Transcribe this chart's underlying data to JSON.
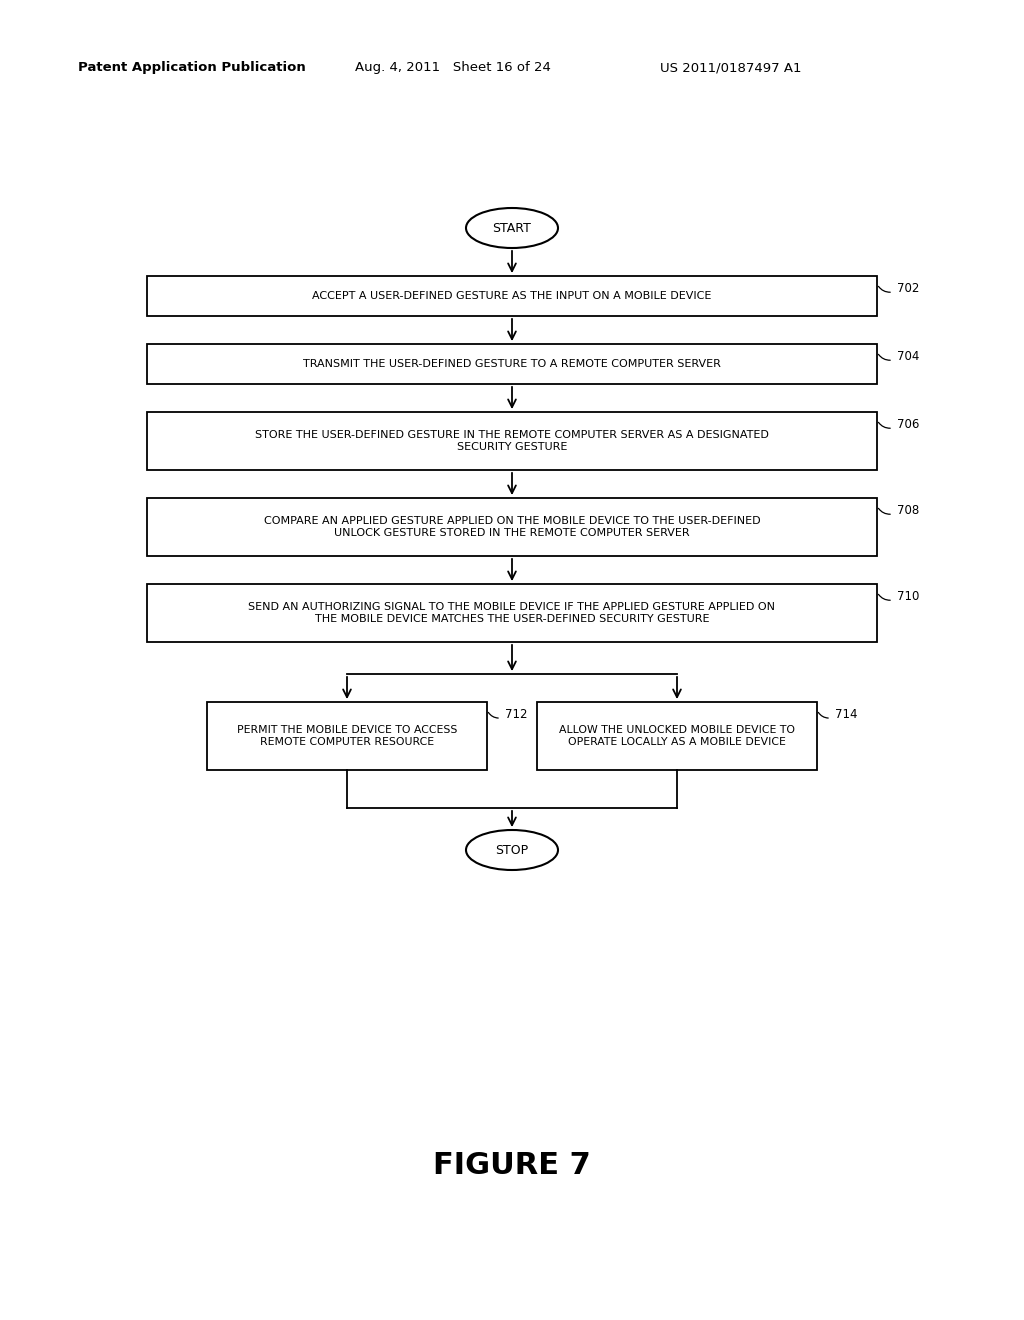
{
  "background_color": "#ffffff",
  "header_left": "Patent Application Publication",
  "header_mid": "Aug. 4, 2011   Sheet 16 of 24",
  "header_right": "US 2011/0187497 A1",
  "figure_label": "FIGURE 7",
  "start_label": "START",
  "stop_label": "STOP",
  "boxes": [
    {
      "id": "702",
      "label": "ACCEPT A USER-DEFINED GESTURE AS THE INPUT ON A MOBILE DEVICE",
      "ref": "702"
    },
    {
      "id": "704",
      "label": "TRANSMIT THE USER-DEFINED GESTURE TO A REMOTE COMPUTER SERVER",
      "ref": "704"
    },
    {
      "id": "706",
      "label": "STORE THE USER-DEFINED GESTURE IN THE REMOTE COMPUTER SERVER AS A DESIGNATED\nSECURITY GESTURE",
      "ref": "706"
    },
    {
      "id": "708",
      "label": "COMPARE AN APPLIED GESTURE APPLIED ON THE MOBILE DEVICE TO THE USER-DEFINED\nUNLOCK GESTURE STORED IN THE REMOTE COMPUTER SERVER",
      "ref": "708"
    },
    {
      "id": "710",
      "label": "SEND AN AUTHORIZING SIGNAL TO THE MOBILE DEVICE IF THE APPLIED GESTURE APPLIED ON\nTHE MOBILE DEVICE MATCHES THE USER-DEFINED SECURITY GESTURE",
      "ref": "710"
    },
    {
      "id": "712",
      "label": "PERMIT THE MOBILE DEVICE TO ACCESS\nREMOTE COMPUTER RESOURCE",
      "ref": "712"
    },
    {
      "id": "714",
      "label": "ALLOW THE UNLOCKED MOBILE DEVICE TO\nOPERATE LOCALLY AS A MOBILE DEVICE",
      "ref": "714"
    }
  ]
}
